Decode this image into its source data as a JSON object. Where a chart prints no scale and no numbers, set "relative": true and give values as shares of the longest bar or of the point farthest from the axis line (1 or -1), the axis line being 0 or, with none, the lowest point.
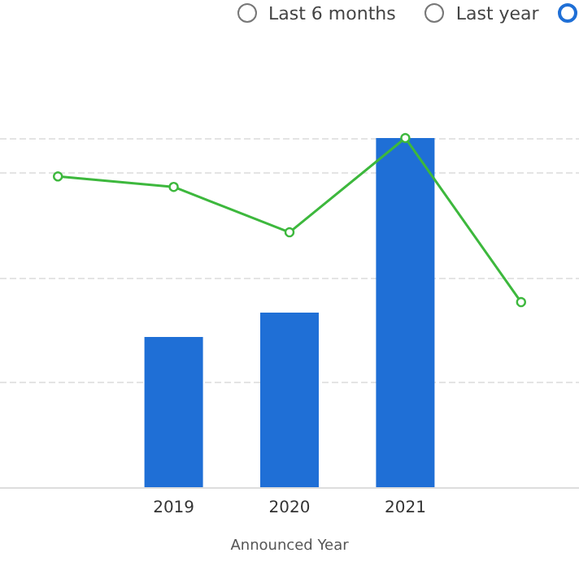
{
  "chart_data": {
    "type": "bar",
    "relative": true,
    "categories": [
      null,
      "2019",
      "2020",
      "2021",
      null
    ],
    "xlabel": "Announced Year",
    "grid": "y",
    "marker": "circle",
    "annotations": [
      "Last 6 months",
      "Last year"
    ],
    "series": [
      {
        "color": "#1f6fd6",
        "values": [
          null,
          0.43,
          0.5,
          1,
          null
        ]
      },
      {
        "type": "line",
        "color": "#3db83d",
        "values": [
          0.89,
          0.86,
          0.73,
          1,
          0.53
        ]
      }
    ]
  }
}
